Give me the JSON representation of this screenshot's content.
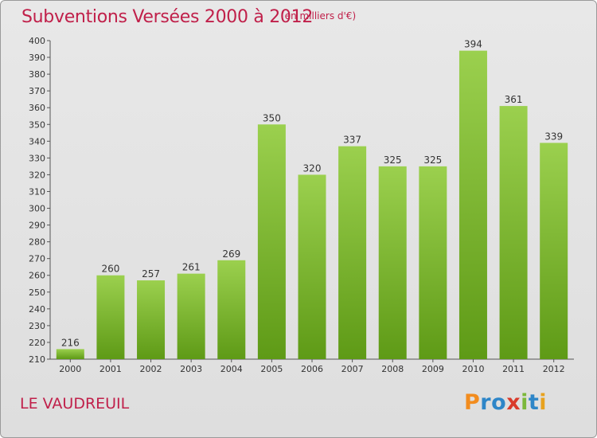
{
  "title": "Subventions Versées 2000 à 2012",
  "subtitle": "(en milliers d'€)",
  "commune": "LE VAUDREUIL",
  "logo": {
    "letters": [
      "P",
      "r",
      "o",
      "x",
      "i",
      "t",
      "i"
    ],
    "colors": [
      "#f28c1e",
      "#2e86c8",
      "#2e86c8",
      "#d93a2b",
      "#7cb83a",
      "#2e86c8",
      "#e8a21e"
    ]
  },
  "colors": {
    "bar_top": "#9bd04e",
    "bar_bottom": "#5e9a16",
    "title": "#c0204a"
  },
  "chart_data": {
    "type": "bar",
    "categories": [
      "2000",
      "2001",
      "2002",
      "2003",
      "2004",
      "2005",
      "2006",
      "2007",
      "2008",
      "2009",
      "2010",
      "2011",
      "2012"
    ],
    "values": [
      216,
      260,
      257,
      261,
      269,
      350,
      320,
      337,
      325,
      325,
      394,
      361,
      339
    ],
    "title": "Subventions Versées 2000 à 2012",
    "ylim": [
      210,
      400
    ],
    "yticks": [
      210,
      220,
      230,
      240,
      250,
      260,
      270,
      280,
      290,
      300,
      310,
      320,
      330,
      340,
      350,
      360,
      370,
      380,
      390,
      400
    ],
    "grid": false,
    "legend": false
  }
}
